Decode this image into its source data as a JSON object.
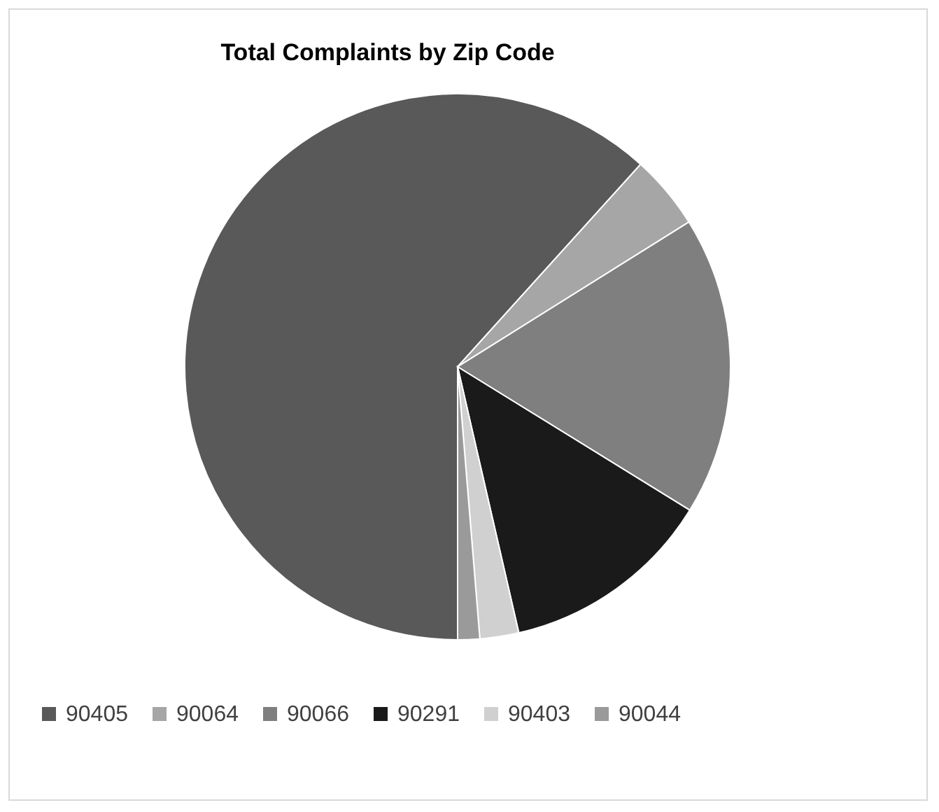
{
  "chart_data": {
    "type": "pie",
    "title": "Total Complaints by Zip Code",
    "categories": [
      "90405",
      "90064",
      "90066",
      "90291",
      "90403",
      "90044"
    ],
    "values": [
      61.7,
      4.4,
      17.7,
      12.6,
      2.3,
      1.3
    ],
    "colors": [
      "#595959",
      "#a6a6a6",
      "#7f7f7f",
      "#1a1a1a",
      "#d0d0d0",
      "#9a9a9a"
    ],
    "legend": "bottom"
  }
}
